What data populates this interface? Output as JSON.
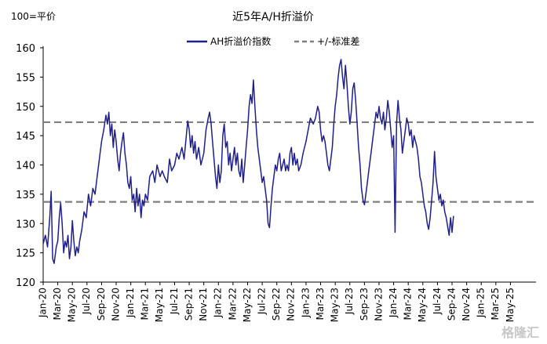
{
  "chart_data": {
    "type": "line",
    "title": "近5年A/H折溢价",
    "ylabel": "100=平价",
    "ylim": [
      120,
      160
    ],
    "yticks": [
      120,
      125,
      130,
      135,
      140,
      145,
      150,
      155,
      160
    ],
    "xticks": [
      "Jan-20",
      "Mar-20",
      "May-20",
      "Jul-20",
      "Sep-20",
      "Nov-20",
      "Jan-21",
      "Mar-21",
      "May-21",
      "Jul-21",
      "Sep-21",
      "Nov-21",
      "Jan-22",
      "Mar-22",
      "May-22",
      "Jul-22",
      "Sep-22",
      "Nov-22",
      "Jan-23",
      "Mar-23",
      "May-23",
      "Jul-23",
      "Sep-23",
      "Nov-23",
      "Jan-24",
      "Mar-24",
      "May-24",
      "Jul-24",
      "Sep-24",
      "Nov-24",
      "Jan-25",
      "Mar-25",
      "May-25"
    ],
    "x_range_months": [
      0,
      67.5
    ],
    "legend_position": "top",
    "series": [
      {
        "name": "AH折溢价指数",
        "color": "#1f1f8f",
        "points": [
          [
            0,
            126.5
          ],
          [
            0.3,
            128
          ],
          [
            0.6,
            126
          ],
          [
            0.9,
            131
          ],
          [
            1.1,
            135.5
          ],
          [
            1.3,
            124
          ],
          [
            1.5,
            123.2
          ],
          [
            1.8,
            126
          ],
          [
            2.0,
            127
          ],
          [
            2.2,
            131
          ],
          [
            2.4,
            133.5
          ],
          [
            2.6,
            130
          ],
          [
            2.8,
            125
          ],
          [
            3.0,
            127
          ],
          [
            3.2,
            126
          ],
          [
            3.4,
            128
          ],
          [
            3.6,
            124
          ],
          [
            3.8,
            126
          ],
          [
            4.0,
            130.5
          ],
          [
            4.2,
            127
          ],
          [
            4.4,
            124.5
          ],
          [
            4.6,
            126
          ],
          [
            4.8,
            125
          ],
          [
            5.0,
            127
          ],
          [
            5.3,
            129
          ],
          [
            5.6,
            132
          ],
          [
            5.9,
            131
          ],
          [
            6.2,
            135
          ],
          [
            6.5,
            133
          ],
          [
            6.8,
            136
          ],
          [
            7.1,
            135
          ],
          [
            7.4,
            138
          ],
          [
            7.7,
            141
          ],
          [
            8.0,
            144
          ],
          [
            8.3,
            146
          ],
          [
            8.6,
            148.5
          ],
          [
            8.8,
            147
          ],
          [
            9.0,
            149
          ],
          [
            9.2,
            145
          ],
          [
            9.4,
            147
          ],
          [
            9.6,
            143
          ],
          [
            9.8,
            146
          ],
          [
            10.0,
            144
          ],
          [
            10.2,
            141
          ],
          [
            10.4,
            139
          ],
          [
            10.6,
            142
          ],
          [
            10.8,
            144
          ],
          [
            11.0,
            145.5
          ],
          [
            11.2,
            142
          ],
          [
            11.4,
            140
          ],
          [
            11.6,
            137
          ],
          [
            11.8,
            136
          ],
          [
            12.0,
            138
          ],
          [
            12.2,
            134
          ],
          [
            12.4,
            135
          ],
          [
            12.6,
            132
          ],
          [
            12.8,
            136
          ],
          [
            13.0,
            133
          ],
          [
            13.2,
            135
          ],
          [
            13.4,
            131
          ],
          [
            13.6,
            134
          ],
          [
            13.8,
            133
          ],
          [
            14.0,
            135
          ],
          [
            14.3,
            134
          ],
          [
            14.6,
            138
          ],
          [
            15.0,
            139
          ],
          [
            15.3,
            137
          ],
          [
            15.6,
            140
          ],
          [
            16.0,
            138
          ],
          [
            16.3,
            139
          ],
          [
            16.6,
            138
          ],
          [
            17.0,
            137
          ],
          [
            17.3,
            141
          ],
          [
            17.6,
            139
          ],
          [
            18.0,
            140
          ],
          [
            18.3,
            142
          ],
          [
            18.6,
            141
          ],
          [
            19.0,
            143
          ],
          [
            19.3,
            141
          ],
          [
            19.6,
            145
          ],
          [
            19.8,
            147.5
          ],
          [
            20.0,
            146
          ],
          [
            20.2,
            143
          ],
          [
            20.4,
            145
          ],
          [
            20.6,
            142
          ],
          [
            20.8,
            144
          ],
          [
            21.0,
            141
          ],
          [
            21.3,
            143
          ],
          [
            21.6,
            140
          ],
          [
            22.0,
            142
          ],
          [
            22.3,
            146
          ],
          [
            22.6,
            148
          ],
          [
            22.8,
            149
          ],
          [
            23.0,
            147
          ],
          [
            23.2,
            144
          ],
          [
            23.4,
            141
          ],
          [
            23.6,
            138
          ],
          [
            23.8,
            136
          ],
          [
            24.0,
            140
          ],
          [
            24.2,
            137
          ],
          [
            24.4,
            139
          ],
          [
            24.6,
            145
          ],
          [
            24.8,
            147
          ],
          [
            25.0,
            143
          ],
          [
            25.2,
            144
          ],
          [
            25.4,
            140
          ],
          [
            25.6,
            142
          ],
          [
            25.8,
            139
          ],
          [
            26.0,
            141
          ],
          [
            26.2,
            143
          ],
          [
            26.4,
            140
          ],
          [
            26.6,
            142
          ],
          [
            26.8,
            139
          ],
          [
            27.0,
            138
          ],
          [
            27.2,
            141
          ],
          [
            27.4,
            137
          ],
          [
            27.6,
            140
          ],
          [
            27.8,
            143
          ],
          [
            28.0,
            146
          ],
          [
            28.2,
            150
          ],
          [
            28.4,
            152
          ],
          [
            28.6,
            150.5
          ],
          [
            28.8,
            154.5
          ],
          [
            29.0,
            150
          ],
          [
            29.2,
            146
          ],
          [
            29.4,
            143
          ],
          [
            29.6,
            141
          ],
          [
            29.8,
            139
          ],
          [
            30.0,
            137
          ],
          [
            30.2,
            138
          ],
          [
            30.4,
            136
          ],
          [
            30.6,
            134
          ],
          [
            30.8,
            130
          ],
          [
            31.0,
            129.3
          ],
          [
            31.2,
            133
          ],
          [
            31.4,
            136
          ],
          [
            31.6,
            138
          ],
          [
            31.8,
            140
          ],
          [
            32.0,
            139
          ],
          [
            32.2,
            141
          ],
          [
            32.4,
            142
          ],
          [
            32.6,
            139
          ],
          [
            32.8,
            140
          ],
          [
            33.0,
            141
          ],
          [
            33.2,
            139
          ],
          [
            33.4,
            140
          ],
          [
            33.6,
            139
          ],
          [
            33.8,
            142
          ],
          [
            34.0,
            143
          ],
          [
            34.2,
            140
          ],
          [
            34.4,
            142
          ],
          [
            34.6,
            140
          ],
          [
            34.8,
            141
          ],
          [
            35.0,
            139
          ],
          [
            35.3,
            140
          ],
          [
            35.6,
            142
          ],
          [
            36.0,
            144
          ],
          [
            36.3,
            146
          ],
          [
            36.6,
            148
          ],
          [
            37.0,
            147
          ],
          [
            37.3,
            148
          ],
          [
            37.6,
            150
          ],
          [
            37.8,
            149
          ],
          [
            38.0,
            146
          ],
          [
            38.2,
            144
          ],
          [
            38.4,
            145
          ],
          [
            38.6,
            144
          ],
          [
            38.8,
            142
          ],
          [
            39.0,
            140
          ],
          [
            39.2,
            139
          ],
          [
            39.4,
            141
          ],
          [
            39.6,
            143
          ],
          [
            39.8,
            147
          ],
          [
            40.0,
            150
          ],
          [
            40.2,
            152
          ],
          [
            40.4,
            155
          ],
          [
            40.6,
            157
          ],
          [
            40.8,
            158
          ],
          [
            41.0,
            155
          ],
          [
            41.2,
            153
          ],
          [
            41.4,
            157
          ],
          [
            41.6,
            154
          ],
          [
            41.8,
            150
          ],
          [
            42.0,
            147
          ],
          [
            42.2,
            149
          ],
          [
            42.4,
            153
          ],
          [
            42.6,
            154
          ],
          [
            42.8,
            151
          ],
          [
            43.0,
            147
          ],
          [
            43.2,
            143
          ],
          [
            43.4,
            140
          ],
          [
            43.6,
            136
          ],
          [
            43.8,
            134
          ],
          [
            44.0,
            133.2
          ],
          [
            44.2,
            135
          ],
          [
            44.4,
            137
          ],
          [
            44.6,
            139
          ],
          [
            44.8,
            141
          ],
          [
            45.0,
            143
          ],
          [
            45.2,
            145
          ],
          [
            45.4,
            147
          ],
          [
            45.6,
            149
          ],
          [
            45.8,
            148
          ],
          [
            46.0,
            150
          ],
          [
            46.2,
            148
          ],
          [
            46.4,
            147
          ],
          [
            46.6,
            149
          ],
          [
            46.8,
            146
          ],
          [
            47.0,
            148
          ],
          [
            47.2,
            151
          ],
          [
            47.4,
            149
          ],
          [
            47.6,
            146
          ],
          [
            47.8,
            143
          ],
          [
            48.0,
            145
          ],
          [
            48.2,
            128.5
          ],
          [
            48.4,
            147
          ],
          [
            48.6,
            151
          ],
          [
            48.8,
            148
          ],
          [
            49.0,
            146
          ],
          [
            49.2,
            142
          ],
          [
            49.4,
            144
          ],
          [
            49.6,
            146
          ],
          [
            49.8,
            148
          ],
          [
            50.0,
            147
          ],
          [
            50.2,
            145
          ],
          [
            50.4,
            146
          ],
          [
            50.6,
            143
          ],
          [
            50.8,
            145
          ],
          [
            51.0,
            144
          ],
          [
            51.2,
            143
          ],
          [
            51.4,
            141
          ],
          [
            51.6,
            138
          ],
          [
            51.8,
            137
          ],
          [
            52.0,
            135
          ],
          [
            52.2,
            133
          ],
          [
            52.4,
            132
          ],
          [
            52.6,
            130
          ],
          [
            52.8,
            129
          ],
          [
            53.0,
            131
          ],
          [
            53.2,
            134
          ],
          [
            53.4,
            137
          ],
          [
            53.6,
            142.3
          ],
          [
            53.8,
            138
          ],
          [
            54.0,
            136
          ],
          [
            54.2,
            134
          ],
          [
            54.4,
            135
          ],
          [
            54.6,
            133
          ],
          [
            54.8,
            134
          ],
          [
            55.0,
            132
          ],
          [
            55.2,
            131
          ],
          [
            55.4,
            129.5
          ],
          [
            55.6,
            128
          ],
          [
            55.8,
            131
          ],
          [
            56.0,
            128.5
          ],
          [
            56.2,
            131.3
          ]
        ]
      },
      {
        "name": "+/-标准差",
        "color": "#7f7f7f",
        "style": "dashed",
        "levels": [
          147.3,
          133.7
        ]
      }
    ]
  },
  "watermark": "格隆汇"
}
